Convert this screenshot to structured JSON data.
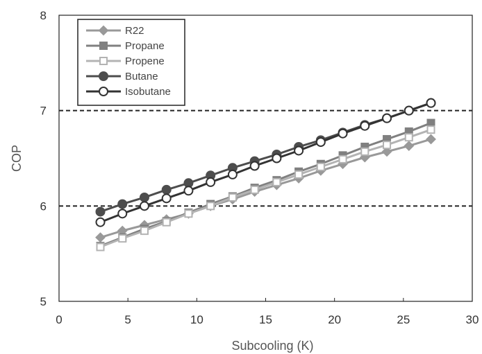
{
  "chart_data": {
    "type": "line",
    "xlabel": "Subcooling (K)",
    "ylabel": "COP",
    "xlim": [
      0,
      30
    ],
    "ylim": [
      5,
      8
    ],
    "xticks": [
      "0",
      "5",
      "10",
      "15",
      "20",
      "25",
      "30"
    ],
    "yticks": [
      "5",
      "6",
      "7",
      "8"
    ],
    "reference_lines": [
      6,
      7
    ],
    "grid": false,
    "legend_position": "top-left",
    "x": [
      3,
      4.6,
      6.2,
      7.8,
      9.4,
      11,
      12.6,
      14.2,
      15.8,
      17.4,
      19,
      20.6,
      22.2,
      23.8,
      25.4,
      27
    ],
    "series": [
      {
        "name": "R22",
        "marker": "diamond-filled",
        "color": "#999999",
        "values": [
          5.67,
          5.74,
          5.8,
          5.86,
          5.92,
          6.0,
          6.07,
          6.15,
          6.22,
          6.29,
          6.37,
          6.44,
          6.51,
          6.57,
          6.63,
          6.7
        ]
      },
      {
        "name": "Propane",
        "marker": "square-filled",
        "color": "#808080",
        "values": [
          5.58,
          5.67,
          5.76,
          5.84,
          5.93,
          6.02,
          6.1,
          6.19,
          6.27,
          6.36,
          6.44,
          6.53,
          6.62,
          6.7,
          6.78,
          6.87
        ]
      },
      {
        "name": "Propene",
        "marker": "square-open",
        "color": "#b3b3b3",
        "values": [
          5.57,
          5.66,
          5.74,
          5.83,
          5.92,
          6.0,
          6.09,
          6.17,
          6.25,
          6.33,
          6.41,
          6.49,
          6.57,
          6.64,
          6.72,
          6.8
        ]
      },
      {
        "name": "Butane",
        "marker": "circle-filled",
        "color": "#4d4d4d",
        "values": [
          5.94,
          6.02,
          6.09,
          6.17,
          6.24,
          6.32,
          6.4,
          6.47,
          6.54,
          6.62,
          6.69,
          6.77,
          6.85,
          6.92,
          7.0,
          7.08
        ]
      },
      {
        "name": "Isobutane",
        "marker": "circle-open",
        "color": "#333333",
        "values": [
          5.83,
          5.92,
          6.0,
          6.08,
          6.16,
          6.25,
          6.33,
          6.42,
          6.5,
          6.58,
          6.67,
          6.76,
          6.84,
          6.92,
          7.0,
          7.08
        ]
      }
    ]
  }
}
